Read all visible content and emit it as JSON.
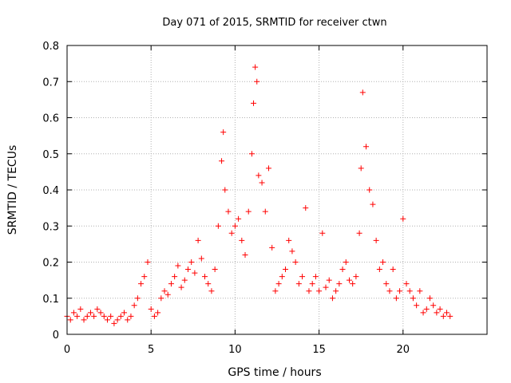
{
  "chart_data": {
    "type": "scatter",
    "title": "Day 071 of 2015, SRMTID for receiver ctwn",
    "xlabel": "GPS time / hours",
    "ylabel": "SRMTID / TECUs",
    "xlim": [
      0,
      25
    ],
    "ylim": [
      0,
      0.8
    ],
    "xticks": [
      "0",
      "5",
      "10",
      "15",
      "20"
    ],
    "yticks": [
      "0",
      "0.1",
      "0.2",
      "0.3",
      "0.4",
      "0.5",
      "0.6",
      "0.7",
      "0.8"
    ],
    "grid": true,
    "marker": "+",
    "color": "#ff0000",
    "series": [
      {
        "name": "SRMTID",
        "x": [
          0.0,
          0.2,
          0.4,
          0.6,
          0.8,
          1.0,
          1.2,
          1.4,
          1.6,
          1.8,
          2.0,
          2.2,
          2.4,
          2.6,
          2.8,
          3.0,
          3.2,
          3.4,
          3.6,
          3.8,
          4.0,
          4.2,
          4.4,
          4.6,
          4.8,
          5.0,
          5.2,
          5.4,
          5.6,
          5.8,
          6.0,
          6.2,
          6.4,
          6.6,
          6.8,
          7.0,
          7.2,
          7.4,
          7.6,
          7.8,
          8.0,
          8.2,
          8.4,
          8.6,
          8.8,
          9.0,
          9.2,
          9.3,
          9.4,
          9.6,
          9.8,
          10.0,
          10.2,
          10.4,
          10.6,
          10.8,
          11.0,
          11.1,
          11.2,
          11.3,
          11.4,
          11.6,
          11.8,
          12.0,
          12.2,
          12.4,
          12.6,
          12.8,
          13.0,
          13.2,
          13.4,
          13.6,
          13.8,
          14.0,
          14.2,
          14.4,
          14.6,
          14.8,
          15.0,
          15.2,
          15.4,
          15.6,
          15.8,
          16.0,
          16.2,
          16.4,
          16.6,
          16.8,
          17.0,
          17.2,
          17.4,
          17.5,
          17.6,
          17.8,
          18.0,
          18.2,
          18.4,
          18.6,
          18.8,
          19.0,
          19.2,
          19.4,
          19.6,
          19.8,
          20.0,
          20.2,
          20.4,
          20.6,
          20.8,
          21.0,
          21.2,
          21.4,
          21.6,
          21.8,
          22.0,
          22.2,
          22.4,
          22.6,
          22.8
        ],
        "y": [
          0.05,
          0.04,
          0.06,
          0.05,
          0.07,
          0.04,
          0.05,
          0.06,
          0.05,
          0.07,
          0.06,
          0.05,
          0.04,
          0.05,
          0.03,
          0.04,
          0.05,
          0.06,
          0.04,
          0.05,
          0.08,
          0.1,
          0.14,
          0.16,
          0.2,
          0.07,
          0.05,
          0.06,
          0.1,
          0.12,
          0.11,
          0.14,
          0.16,
          0.19,
          0.13,
          0.15,
          0.18,
          0.2,
          0.17,
          0.26,
          0.21,
          0.16,
          0.14,
          0.12,
          0.18,
          0.3,
          0.48,
          0.56,
          0.4,
          0.34,
          0.28,
          0.3,
          0.32,
          0.26,
          0.22,
          0.34,
          0.5,
          0.64,
          0.74,
          0.7,
          0.44,
          0.42,
          0.34,
          0.46,
          0.24,
          0.12,
          0.14,
          0.16,
          0.18,
          0.26,
          0.23,
          0.2,
          0.14,
          0.16,
          0.35,
          0.12,
          0.14,
          0.16,
          0.12,
          0.28,
          0.13,
          0.15,
          0.1,
          0.12,
          0.14,
          0.18,
          0.2,
          0.15,
          0.14,
          0.16,
          0.28,
          0.46,
          0.67,
          0.52,
          0.4,
          0.36,
          0.26,
          0.18,
          0.2,
          0.14,
          0.12,
          0.18,
          0.1,
          0.12,
          0.32,
          0.14,
          0.12,
          0.1,
          0.08,
          0.12,
          0.06,
          0.07,
          0.1,
          0.08,
          0.06,
          0.07,
          0.05,
          0.06,
          0.05
        ]
      }
    ]
  }
}
